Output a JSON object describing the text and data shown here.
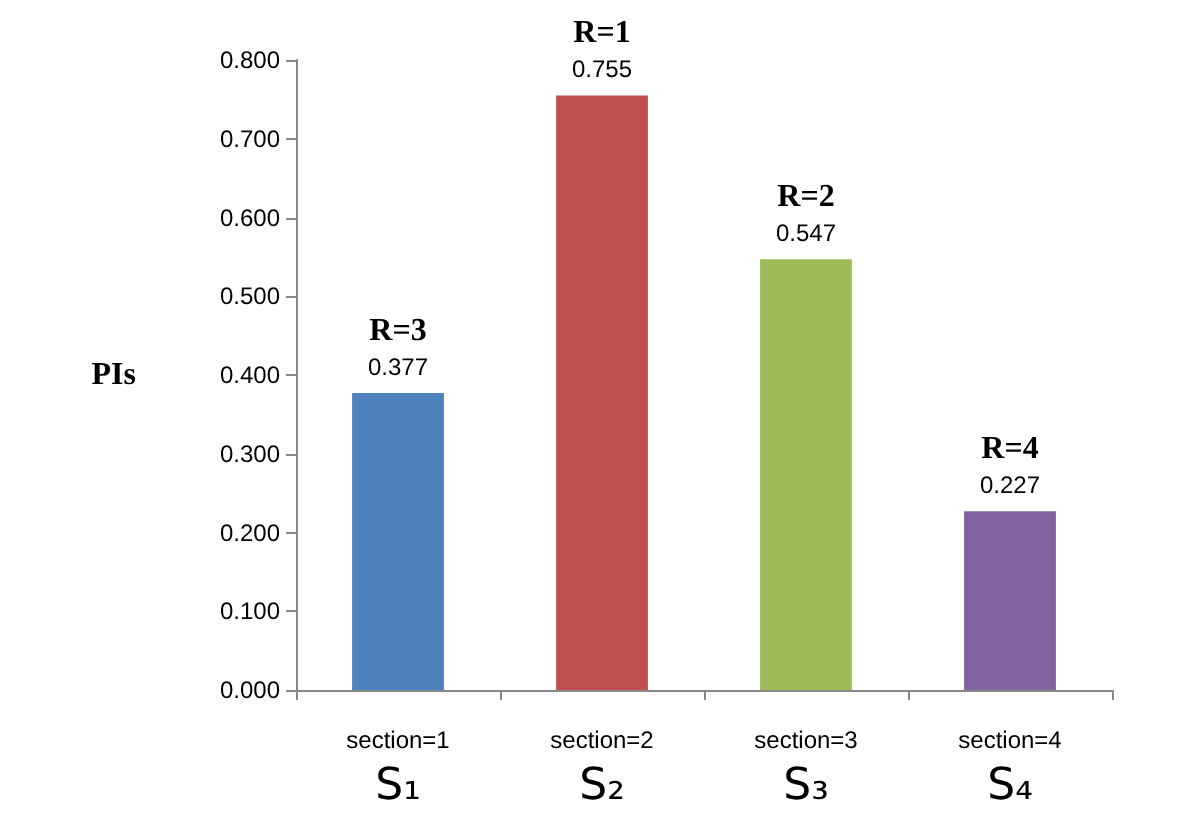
{
  "chart_data": {
    "type": "bar",
    "ylabel": "PIs",
    "categories": [
      "section=1\nS₁",
      "section=2\nS₂",
      "section=3\nS₃",
      "section=4\nS₄"
    ],
    "values": [
      0.377,
      0.755,
      0.547,
      0.227
    ],
    "colors": [
      "#4f81bd",
      "#c0504d",
      "#9bbb59",
      "#8064a2"
    ],
    "value_labels": [
      "R=3\n0.377",
      "R=1\n0.755",
      "R=2\n0.547",
      "R=4\n0.227"
    ],
    "ylim": [
      0,
      0.8
    ],
    "yticks": [
      {
        "value": 0,
        "label": "0.000"
      },
      {
        "value": 0.1,
        "label": "0.100"
      },
      {
        "value": 0.2,
        "label": "0.200"
      },
      {
        "value": 0.3,
        "label": "0.300"
      },
      {
        "value": 0.4,
        "label": "0.400"
      },
      {
        "value": 0.5,
        "label": "0.500"
      },
      {
        "value": 0.6,
        "label": "0.600"
      },
      {
        "value": 0.7,
        "label": "0.700"
      },
      {
        "value": 0.8,
        "label": "0.800"
      }
    ],
    "grid": false
  }
}
